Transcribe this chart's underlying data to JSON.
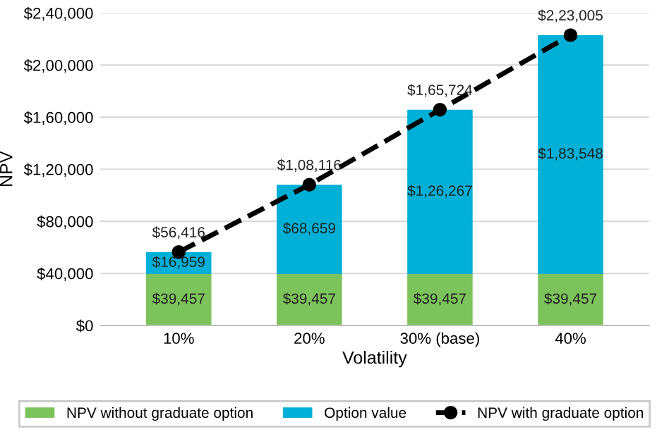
{
  "chart_data": {
    "type": "bar",
    "stacked": true,
    "xlabel": "Volatility",
    "ylabel": "NPV",
    "categories": [
      "10%",
      "20%",
      "30% (base)",
      "40%"
    ],
    "series": [
      {
        "name": "NPV without graduate option",
        "color": "#7dc35b",
        "values": [
          39457,
          39457,
          39457,
          39457
        ],
        "value_labels": [
          "$39,457",
          "$39,457",
          "$39,457",
          "$39,457"
        ]
      },
      {
        "name": "Option value",
        "color": "#00b0d6",
        "values": [
          16959,
          68659,
          126267,
          183548
        ],
        "value_labels": [
          "$16,959",
          "$68,659",
          "$1,26,267",
          "$1,83,548"
        ]
      },
      {
        "name": "NPV with graduate option",
        "type": "line",
        "color": "#000000",
        "line_style": "dashed",
        "marker": "circle",
        "values": [
          56416,
          108116,
          165724,
          223005
        ],
        "value_labels": [
          "$56,416",
          "$1,08,116",
          "$1,65,724",
          "$2,23,005"
        ]
      }
    ],
    "ylim": [
      0,
      240000
    ],
    "yticks": [
      {
        "value": 0,
        "label": "$0"
      },
      {
        "value": 40000,
        "label": "$40,000"
      },
      {
        "value": 80000,
        "label": "$80,000"
      },
      {
        "value": 120000,
        "label": "$1,20,000"
      },
      {
        "value": 160000,
        "label": "$1,60,000"
      },
      {
        "value": 200000,
        "label": "$2,00,000"
      },
      {
        "value": 240000,
        "label": "$2,40,000"
      }
    ],
    "grid": "y",
    "legend": "bottom"
  }
}
